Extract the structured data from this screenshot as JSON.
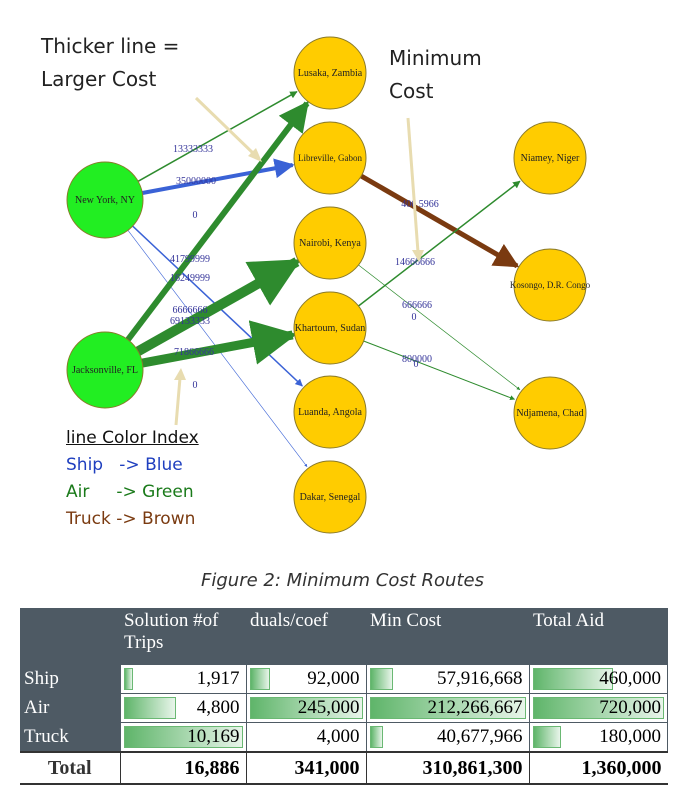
{
  "annotations": {
    "thicker_line": [
      "Thicker line =",
      "Larger Cost"
    ],
    "minimum_cost": [
      "Minimum",
      "Cost"
    ]
  },
  "legend": {
    "title": "line Color Index",
    "ship": "Ship   -> Blue",
    "air": "Air     -> Green",
    "truck": "Truck -> Brown"
  },
  "colors": {
    "ship": "#3a62d6",
    "air": "#2e8b2e",
    "truck": "#7a3a10",
    "origin_node": "#22ee22",
    "dest_node": "#ffcc00",
    "edge_label": "#333399"
  },
  "nodes": [
    {
      "id": "ny",
      "label": "New York, NY",
      "type": "origin"
    },
    {
      "id": "jax",
      "label": "Jacksonville, FL",
      "type": "origin"
    },
    {
      "id": "lusaka",
      "label": "Lusaka, Zambia",
      "type": "dest"
    },
    {
      "id": "libreville",
      "label": "Libreville, Gabon",
      "type": "dest"
    },
    {
      "id": "nairobi",
      "label": "Nairobi, Kenya",
      "type": "dest"
    },
    {
      "id": "khartoum",
      "label": "Khartoum, Sudan",
      "type": "dest"
    },
    {
      "id": "luanda",
      "label": "Luanda, Angola",
      "type": "dest"
    },
    {
      "id": "dakar",
      "label": "Dakar, Senegal",
      "type": "dest"
    },
    {
      "id": "niamey",
      "label": "Niamey, Niger",
      "type": "dest"
    },
    {
      "id": "kosongo",
      "label": "Kosongo, D.R. Congo",
      "type": "dest"
    },
    {
      "id": "ndjamena",
      "label": "Ndjamena, Chad",
      "type": "dest"
    }
  ],
  "edges": [
    {
      "from": "ny",
      "to": "lusaka",
      "mode": "air",
      "weight": 1.5
    },
    {
      "from": "ny",
      "to": "libreville",
      "mode": "ship",
      "weight": 4
    },
    {
      "from": "ny",
      "to": "luanda",
      "mode": "ship",
      "weight": 1.5
    },
    {
      "from": "ny",
      "to": "dakar",
      "mode": "ship",
      "weight": 0.6
    },
    {
      "from": "jax",
      "to": "lusaka",
      "mode": "air",
      "weight": 6
    },
    {
      "from": "jax",
      "to": "nairobi",
      "mode": "air",
      "weight": 10
    },
    {
      "from": "jax",
      "to": "khartoum",
      "mode": "air",
      "weight": 9
    },
    {
      "from": "libreville",
      "to": "kosongo",
      "mode": "truck",
      "weight": 5
    },
    {
      "from": "khartoum",
      "to": "niamey",
      "mode": "air",
      "weight": 1.5
    },
    {
      "from": "nairobi",
      "to": "ndjamena",
      "mode": "air",
      "weight": 0.7
    },
    {
      "from": "khartoum",
      "to": "ndjamena",
      "mode": "air",
      "weight": 1
    }
  ],
  "edge_labels": [
    "13333333",
    "35000000",
    "0",
    "41799999",
    "16249999",
    "6666666",
    "69133333",
    "71866666",
    "0",
    "406 5966",
    "14666666",
    "666666",
    "0",
    "800000",
    "0"
  ],
  "caption": "Figure 2: Minimum Cost Routes",
  "table": {
    "headers": [
      "",
      "Solution #of Trips",
      "duals/coef",
      "Min Cost",
      "Total Aid"
    ],
    "rows": [
      {
        "label": "Ship",
        "values": [
          "1,917",
          "92,000",
          "57,916,668",
          "460,000"
        ],
        "fill": [
          0.12,
          0.22,
          0.18,
          0.63
        ]
      },
      {
        "label": "Air",
        "values": [
          "4,800",
          "245,000",
          "212,266,667",
          "720,000"
        ],
        "fill": [
          0.47,
          1.0,
          1.0,
          1.0
        ]
      },
      {
        "label": "Truck",
        "values": [
          "10,169",
          "4,000",
          "40,677,966",
          "180,000"
        ],
        "fill": [
          1.0,
          0.0,
          0.12,
          0.25
        ]
      }
    ],
    "total": {
      "label": "Total",
      "values": [
        "16,886",
        "341,000",
        "310,861,300",
        "1,360,000"
      ]
    }
  }
}
